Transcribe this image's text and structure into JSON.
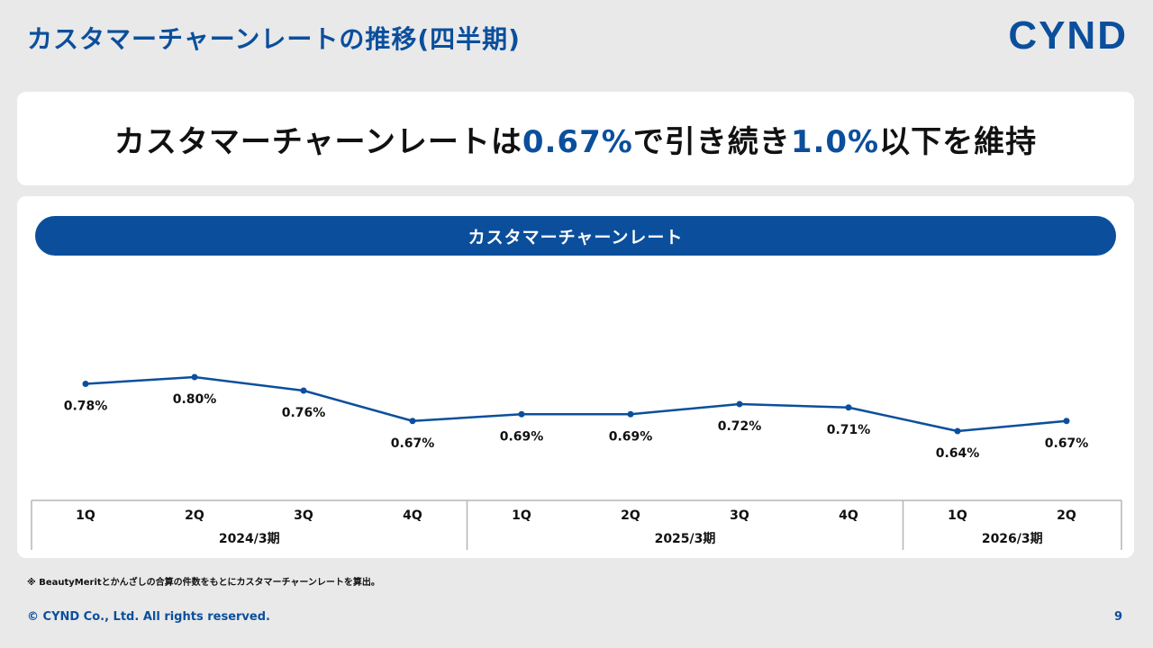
{
  "header": {
    "title": "カスタマーチャーンレートの推移(四半期)",
    "logo_text": "CYND"
  },
  "headline": {
    "part1": "カスタマーチャーンレートは",
    "value1": "0.67%",
    "part2": "で引き続き",
    "value2": "1.0%",
    "part3": "以下を維持"
  },
  "chart_banner": "カスタマーチャーンレート",
  "chart_data": {
    "type": "line",
    "title": "カスタマーチャーンレート",
    "categories": [
      "1Q",
      "2Q",
      "3Q",
      "4Q",
      "1Q",
      "2Q",
      "3Q",
      "4Q",
      "1Q",
      "2Q"
    ],
    "groups": [
      {
        "label": "2024/3期",
        "count": 4
      },
      {
        "label": "2025/3期",
        "count": 4
      },
      {
        "label": "2026/3期",
        "count": 2
      }
    ],
    "series": [
      {
        "name": "カスタマーチャーンレート",
        "values": [
          0.78,
          0.8,
          0.76,
          0.67,
          0.69,
          0.69,
          0.72,
          0.71,
          0.64,
          0.67
        ],
        "labels": [
          "0.78%",
          "0.80%",
          "0.76%",
          "0.67%",
          "0.69%",
          "0.69%",
          "0.72%",
          "0.71%",
          "0.64%",
          "0.67%"
        ]
      }
    ],
    "color": "#0b4f9c",
    "xlabel": "",
    "ylabel": "",
    "grid": false
  },
  "footnote": "※ BeautyMeritとかんざしの合算の件数をもとにカスタマーチャーンレートを算出。",
  "footer": {
    "copyright": "© CYND Co., Ltd. All rights reserved.",
    "page_number": "9"
  }
}
